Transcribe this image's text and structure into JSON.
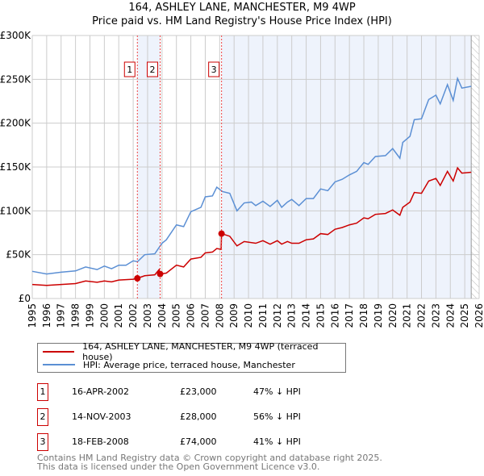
{
  "header": {
    "title": "164, ASHLEY LANE, MANCHESTER, M9 4WP",
    "subtitle": "Price paid vs. HM Land Registry's House Price Index (HPI)"
  },
  "colors": {
    "property": "#cc0000",
    "hpi": "#5b8fd4",
    "shade": "#eef3fc",
    "grid": "#cccccc",
    "marker_line": "#ee4444"
  },
  "chart_data": {
    "type": "line",
    "title": "164, ASHLEY LANE, MANCHESTER, M9 4WP",
    "xlim": [
      1995,
      2026
    ],
    "ylim": [
      0,
      300000
    ],
    "x_ticks": [
      1995,
      1996,
      1997,
      1998,
      1999,
      2000,
      2001,
      2002,
      2003,
      2004,
      2005,
      2006,
      2007,
      2008,
      2009,
      2010,
      2011,
      2012,
      2013,
      2014,
      2015,
      2016,
      2017,
      2018,
      2019,
      2020,
      2021,
      2022,
      2023,
      2024,
      2025,
      2026
    ],
    "y_ticks": [
      {
        "v": 0,
        "label": "£0"
      },
      {
        "v": 50000,
        "label": "£50K"
      },
      {
        "v": 100000,
        "label": "£100K"
      },
      {
        "v": 150000,
        "label": "£150K"
      },
      {
        "v": 200000,
        "label": "£200K"
      },
      {
        "v": 250000,
        "label": "£250K"
      },
      {
        "v": 300000,
        "label": "£300K"
      }
    ],
    "grid": true,
    "data_end": 2025.45,
    "series": [
      {
        "name": "164, ASHLEY LANE, MANCHESTER, M9 4WP (terraced house)",
        "color": "#cc0000",
        "points": [
          [
            1995,
            16
          ],
          [
            1996,
            15
          ],
          [
            1997,
            16
          ],
          [
            1998,
            17
          ],
          [
            1998.7,
            20
          ],
          [
            1999.5,
            18.5
          ],
          [
            2000,
            20
          ],
          [
            2000.5,
            19
          ],
          [
            2001,
            21
          ],
          [
            2002,
            22
          ],
          [
            2002.29,
            23
          ],
          [
            2002.8,
            26
          ],
          [
            2003.5,
            27
          ],
          [
            2003.8,
            33
          ],
          [
            2003.87,
            28
          ],
          [
            2004.3,
            29
          ],
          [
            2005,
            38
          ],
          [
            2005.5,
            36
          ],
          [
            2006,
            45
          ],
          [
            2006.7,
            47
          ],
          [
            2007,
            52
          ],
          [
            2007.5,
            53
          ],
          [
            2007.8,
            57
          ],
          [
            2008.1,
            56
          ],
          [
            2008.13,
            74
          ],
          [
            2008.7,
            71
          ],
          [
            2009.2,
            60
          ],
          [
            2009.7,
            65
          ],
          [
            2010.5,
            63
          ],
          [
            2011,
            66
          ],
          [
            2011.5,
            62
          ],
          [
            2012,
            66
          ],
          [
            2012.3,
            62
          ],
          [
            2012.7,
            65
          ],
          [
            2013,
            63
          ],
          [
            2013.5,
            63
          ],
          [
            2014,
            67
          ],
          [
            2014.5,
            68
          ],
          [
            2015,
            74
          ],
          [
            2015.5,
            73
          ],
          [
            2016,
            79
          ],
          [
            2016.5,
            81
          ],
          [
            2017,
            84
          ],
          [
            2017.5,
            86
          ],
          [
            2018,
            92
          ],
          [
            2018.3,
            91
          ],
          [
            2018.8,
            96
          ],
          [
            2019.5,
            97
          ],
          [
            2020,
            101
          ],
          [
            2020.5,
            95
          ],
          [
            2020.7,
            104
          ],
          [
            2021.2,
            110
          ],
          [
            2021.5,
            121
          ],
          [
            2022,
            120
          ],
          [
            2022.5,
            134
          ],
          [
            2023,
            137
          ],
          [
            2023.3,
            129
          ],
          [
            2023.8,
            145
          ],
          [
            2024.2,
            134
          ],
          [
            2024.5,
            149
          ],
          [
            2024.8,
            143
          ],
          [
            2025.45,
            144
          ]
        ]
      },
      {
        "name": "HPI: Average price, terraced house, Manchester",
        "color": "#5b8fd4",
        "points": [
          [
            1995,
            31
          ],
          [
            1996,
            28
          ],
          [
            1997,
            30
          ],
          [
            1998,
            31.5
          ],
          [
            1998.7,
            36
          ],
          [
            1999.5,
            33
          ],
          [
            2000,
            37
          ],
          [
            2000.5,
            34
          ],
          [
            2001,
            38
          ],
          [
            2001.5,
            38
          ],
          [
            2002,
            43
          ],
          [
            2002.3,
            42
          ],
          [
            2002.8,
            50
          ],
          [
            2003.5,
            51
          ],
          [
            2004,
            63
          ],
          [
            2004.3,
            67
          ],
          [
            2005,
            84
          ],
          [
            2005.5,
            82
          ],
          [
            2006,
            99
          ],
          [
            2006.7,
            104
          ],
          [
            2007,
            116
          ],
          [
            2007.5,
            117
          ],
          [
            2007.8,
            127
          ],
          [
            2008.2,
            122
          ],
          [
            2008.7,
            120
          ],
          [
            2009.2,
            100
          ],
          [
            2009.7,
            109
          ],
          [
            2010.2,
            110
          ],
          [
            2010.5,
            106
          ],
          [
            2011,
            111
          ],
          [
            2011.5,
            105
          ],
          [
            2012,
            112
          ],
          [
            2012.3,
            104
          ],
          [
            2012.7,
            110
          ],
          [
            2013,
            113
          ],
          [
            2013.5,
            106
          ],
          [
            2014,
            114
          ],
          [
            2014.5,
            114
          ],
          [
            2015,
            125
          ],
          [
            2015.5,
            123
          ],
          [
            2016,
            133
          ],
          [
            2016.5,
            136
          ],
          [
            2017,
            141
          ],
          [
            2017.5,
            145
          ],
          [
            2018,
            155
          ],
          [
            2018.3,
            153
          ],
          [
            2018.8,
            162
          ],
          [
            2019.5,
            163
          ],
          [
            2020,
            171
          ],
          [
            2020.5,
            160
          ],
          [
            2020.7,
            178
          ],
          [
            2021.2,
            185
          ],
          [
            2021.5,
            204
          ],
          [
            2022,
            205
          ],
          [
            2022.5,
            227
          ],
          [
            2023,
            232
          ],
          [
            2023.3,
            222
          ],
          [
            2023.8,
            244
          ],
          [
            2024.2,
            226
          ],
          [
            2024.5,
            251
          ],
          [
            2024.8,
            240
          ],
          [
            2025.45,
            242
          ]
        ]
      }
    ],
    "sales": [
      {
        "id": "1",
        "x": 2002.29,
        "price": 23000
      },
      {
        "id": "2",
        "x": 2003.87,
        "price": 28000
      },
      {
        "id": "3",
        "x": 2008.13,
        "price": 74000
      }
    ]
  },
  "legend": {
    "property": "164, ASHLEY LANE, MANCHESTER, M9 4WP (terraced house)",
    "hpi": "HPI: Average price, terraced house, Manchester"
  },
  "transactions": [
    {
      "id": "1",
      "date": "16-APR-2002",
      "price": "£23,000",
      "hpi": "47% ↓ HPI"
    },
    {
      "id": "2",
      "date": "14-NOV-2003",
      "price": "£28,000",
      "hpi": "56% ↓ HPI"
    },
    {
      "id": "3",
      "date": "18-FEB-2008",
      "price": "£74,000",
      "hpi": "41% ↓ HPI"
    }
  ],
  "footer": {
    "line1": "Contains HM Land Registry data © Crown copyright and database right 2025.",
    "line2": "This data is licensed under the Open Government Licence v3.0."
  }
}
